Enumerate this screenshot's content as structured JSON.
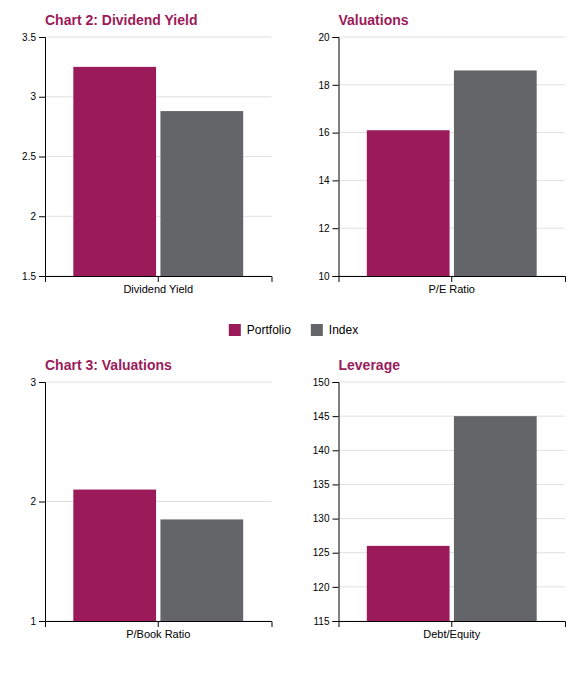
{
  "chart_data": [
    {
      "type": "bar",
      "title": "Chart 2: Dividend Yield",
      "categories": [
        "Dividend Yield"
      ],
      "series": [
        {
          "name": "Portfolio",
          "color": "#9B1B5A",
          "values": [
            3.25
          ]
        },
        {
          "name": "Index",
          "color": "#636569",
          "values": [
            2.88
          ]
        }
      ],
      "ylim": [
        1.5,
        3.5
      ],
      "yticks": [
        1.5,
        2,
        2.5,
        3,
        3.5
      ],
      "grid": true,
      "legend": "bottom"
    },
    {
      "type": "bar",
      "title": "Valuations",
      "categories": [
        "P/E Ratio"
      ],
      "series": [
        {
          "name": "Portfolio",
          "color": "#9B1B5A",
          "values": [
            16.1
          ]
        },
        {
          "name": "Index",
          "color": "#636569",
          "values": [
            18.6
          ]
        }
      ],
      "ylim": [
        10,
        20
      ],
      "yticks": [
        10,
        12,
        14,
        16,
        18,
        20
      ],
      "grid": true
    },
    {
      "type": "bar",
      "title": "Chart 3: Valuations",
      "categories": [
        "P/Book Ratio"
      ],
      "series": [
        {
          "name": "Portfolio",
          "color": "#9B1B5A",
          "values": [
            2.1
          ]
        },
        {
          "name": "Index",
          "color": "#636569",
          "values": [
            1.85
          ]
        }
      ],
      "ylim": [
        1,
        3
      ],
      "yticks": [
        1,
        2,
        3
      ],
      "grid": true
    },
    {
      "type": "bar",
      "title": "Leverage",
      "categories": [
        "Debt/Equity"
      ],
      "series": [
        {
          "name": "Portfolio",
          "color": "#9B1B5A",
          "values": [
            126
          ]
        },
        {
          "name": "Index",
          "color": "#636569",
          "values": [
            145
          ]
        }
      ],
      "ylim": [
        115,
        150
      ],
      "yticks": [
        115,
        120,
        125,
        130,
        135,
        140,
        145,
        150
      ],
      "grid": true
    }
  ]
}
